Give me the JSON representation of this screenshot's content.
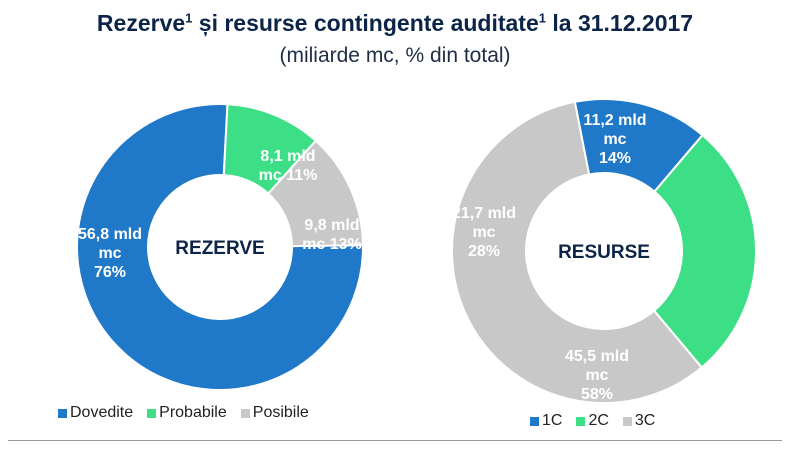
{
  "header": {
    "title_main": "Rezerve",
    "title_sup1": "1",
    "title_mid": " și resurse contingente auditate",
    "title_sup2": "1",
    "title_end": " la 31.12.2017",
    "subtitle": "(miliarde mc, % din total)"
  },
  "colors": {
    "blue": "#1f78c8",
    "green": "#3ddf86",
    "gray": "#c8c8c8",
    "label_text": "#ffffff",
    "center_text": "#0b2447"
  },
  "chart_data": [
    {
      "type": "pie",
      "variant": "donut",
      "center_label": "REZERVE",
      "series": [
        {
          "name": "Dovedite",
          "value": 56.8,
          "percent": 76,
          "label_lines": [
            "56,8 mld",
            "mc",
            "76%"
          ],
          "color": "#1f78c8"
        },
        {
          "name": "Probabile",
          "value": 8.1,
          "percent": 11,
          "label_lines": [
            "8,1 mld",
            "mc 11%"
          ],
          "color": "#3ddf86"
        },
        {
          "name": "Posibile",
          "value": 9.8,
          "percent": 13,
          "label_lines": [
            "9,8 mld",
            "mc  13%"
          ],
          "color": "#c8c8c8"
        }
      ],
      "legend_position": "bottom"
    },
    {
      "type": "pie",
      "variant": "donut",
      "center_label": "RESURSE",
      "series": [
        {
          "name": "1C",
          "value": 11.2,
          "percent": 14,
          "label_lines": [
            "11,2 mld",
            "mc",
            "14%"
          ],
          "color": "#1f78c8"
        },
        {
          "name": "2C",
          "value": 21.7,
          "percent": 28,
          "label_lines": [
            "21,7 mld",
            "mc",
            "28%"
          ],
          "color": "#3ddf86"
        },
        {
          "name": "3C",
          "value": 45.5,
          "percent": 58,
          "label_lines": [
            "45,5 mld",
            "mc",
            "58%"
          ],
          "color": "#c8c8c8"
        }
      ],
      "legend_position": "bottom"
    }
  ]
}
